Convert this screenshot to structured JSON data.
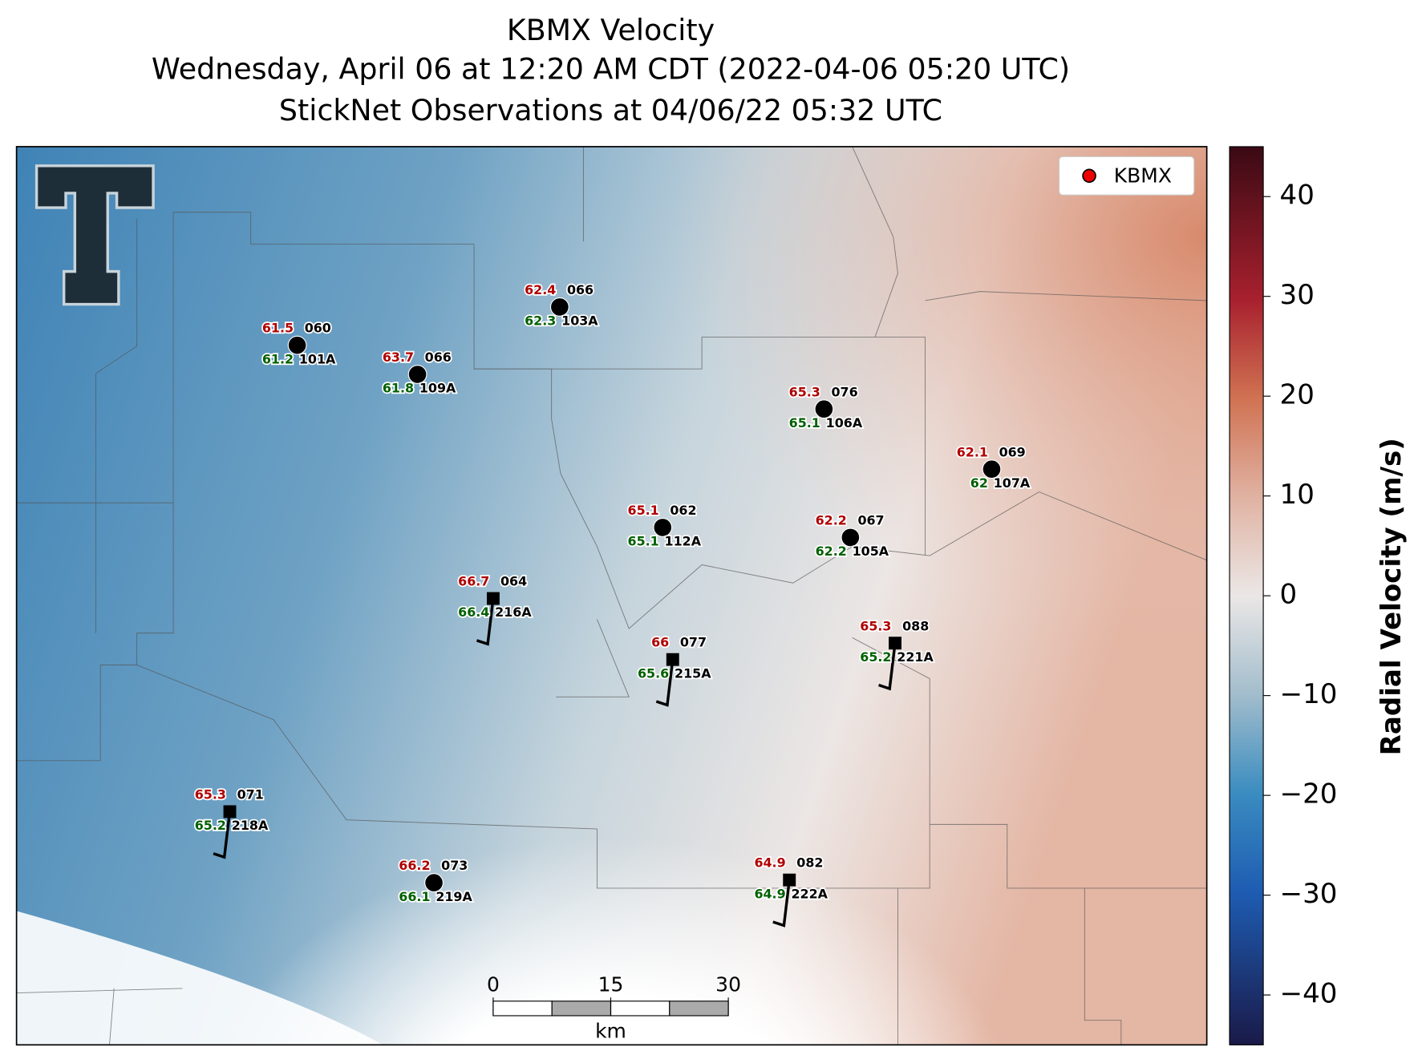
{
  "title": [
    "KBMX Velocity",
    "Wednesday, April 06 at 12:20 AM CDT (2022-04-06 05:20 UTC)",
    "StickNet Observations at 04/06/22 05:32 UTC"
  ],
  "legend": "KBMX",
  "stations": [
    {
      "temp": 61.5,
      "code": "060",
      "dew": 61.2,
      "id": "101A"
    },
    {
      "temp": 63.7,
      "code": "066",
      "dew": 61.8,
      "id": "109A"
    },
    {
      "temp": 62.4,
      "code": "066",
      "dew": 62.3,
      "id": "103A"
    },
    {
      "temp": 65.3,
      "code": "076",
      "dew": 65.1,
      "id": "106A"
    },
    {
      "temp": 62.1,
      "code": "069",
      "dew": 62.0,
      "id": "107A"
    },
    {
      "temp": 65.1,
      "code": "062",
      "dew": 65.1,
      "id": "112A"
    },
    {
      "temp": 62.2,
      "code": "067",
      "dew": 62.2,
      "id": "105A"
    },
    {
      "temp": 66.7,
      "code": "064",
      "dew": 66.4,
      "id": "216A"
    },
    {
      "temp": 66.0,
      "code": "077",
      "dew": 65.6,
      "id": "215A"
    },
    {
      "temp": 65.3,
      "code": "088",
      "dew": 65.2,
      "id": "221A"
    },
    {
      "temp": 65.3,
      "code": "071",
      "dew": 65.2,
      "id": "218A"
    },
    {
      "temp": 66.2,
      "code": "073",
      "dew": 66.1,
      "id": "219A"
    },
    {
      "temp": 64.9,
      "code": "082",
      "dew": 64.9,
      "id": "222A"
    }
  ],
  "colorbar": {
    "label": "Radial Velocity (m/s)",
    "lim": [
      -45,
      45
    ],
    "ticks": [
      {
        "value": -40,
        "label": "−40"
      },
      {
        "value": -30,
        "label": "−30"
      },
      {
        "value": -20,
        "label": "−20"
      },
      {
        "value": -10,
        "label": "−10"
      },
      0,
      10,
      20,
      30,
      40
    ]
  },
  "scalebar": {
    "unit": "km",
    "ticks": [
      0,
      15,
      30
    ]
  }
}
